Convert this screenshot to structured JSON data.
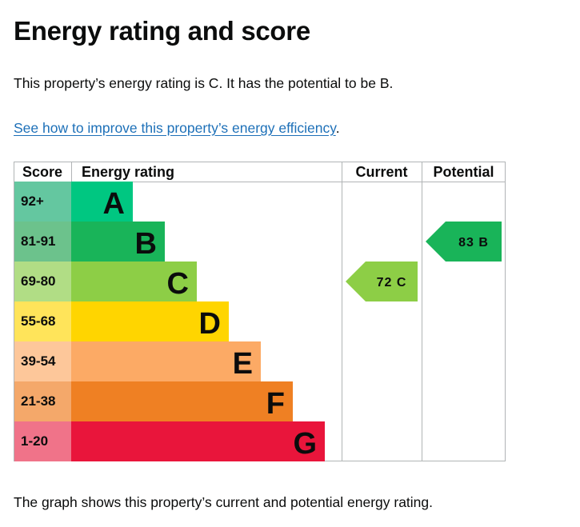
{
  "page": {
    "title": "Energy rating and score",
    "summary": "This property’s energy rating is C. It has the potential to be B.",
    "link_text": "See how to improve this property’s energy efficiency",
    "link_suffix": ".",
    "footnote": "The graph shows this property’s current and potential energy rating."
  },
  "chart_data": {
    "type": "table",
    "headers": {
      "score": "Score",
      "rating": "Energy rating",
      "current": "Current",
      "potential": "Potential"
    },
    "bands": [
      {
        "letter": "A",
        "range": "92+",
        "color": "#00c781",
        "score_color": "#64c7a0"
      },
      {
        "letter": "B",
        "range": "81-91",
        "color": "#19b459",
        "score_color": "#6cc28c"
      },
      {
        "letter": "C",
        "range": "69-80",
        "color": "#8dce46",
        "score_color": "#b1dd85"
      },
      {
        "letter": "D",
        "range": "55-68",
        "color": "#ffd500",
        "score_color": "#ffe45a"
      },
      {
        "letter": "E",
        "range": "39-54",
        "color": "#fcaa65",
        "score_color": "#fdc79a"
      },
      {
        "letter": "F",
        "range": "21-38",
        "color": "#ef8023",
        "score_color": "#f4a86a"
      },
      {
        "letter": "G",
        "range": "1-20",
        "color": "#e9153b",
        "score_color": "#f07389"
      }
    ],
    "current": {
      "score": 72,
      "letter": "C",
      "label": "72 C",
      "color": "#8dce46"
    },
    "potential": {
      "score": 83,
      "letter": "B",
      "label": "83 B",
      "color": "#19b459"
    }
  }
}
